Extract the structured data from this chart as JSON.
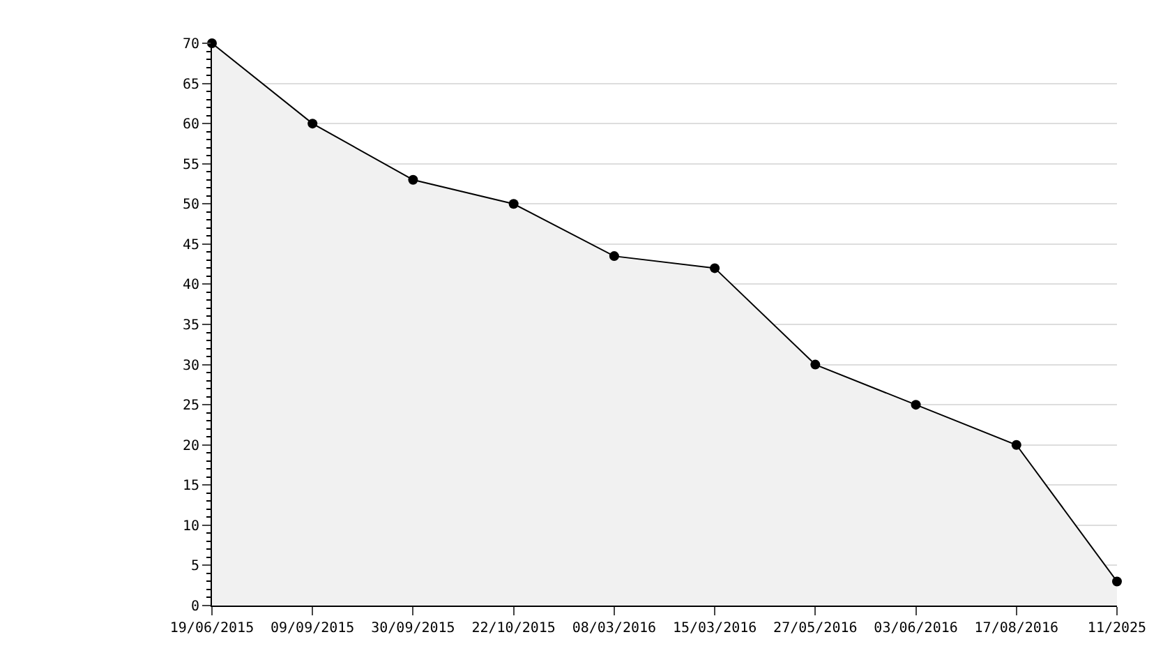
{
  "chart_data": {
    "type": "area",
    "categories": [
      "19/06/2015",
      "09/09/2015",
      "30/09/2015",
      "22/10/2015",
      "08/03/2016",
      "15/03/2016",
      "27/05/2016",
      "03/06/2016",
      "17/08/2016",
      "11/2025"
    ],
    "series": [
      {
        "color": "#000000",
        "values": [
          70,
          60,
          53,
          50,
          43.5,
          42,
          30,
          25,
          20,
          3
        ]
      }
    ],
    "ylim": [
      0,
      70
    ],
    "yticks": [
      0,
      5,
      10,
      15,
      20,
      25,
      30,
      35,
      40,
      45,
      50,
      55,
      60,
      65,
      70
    ],
    "grid": "y",
    "marker": "circle",
    "line_style": "solid"
  }
}
